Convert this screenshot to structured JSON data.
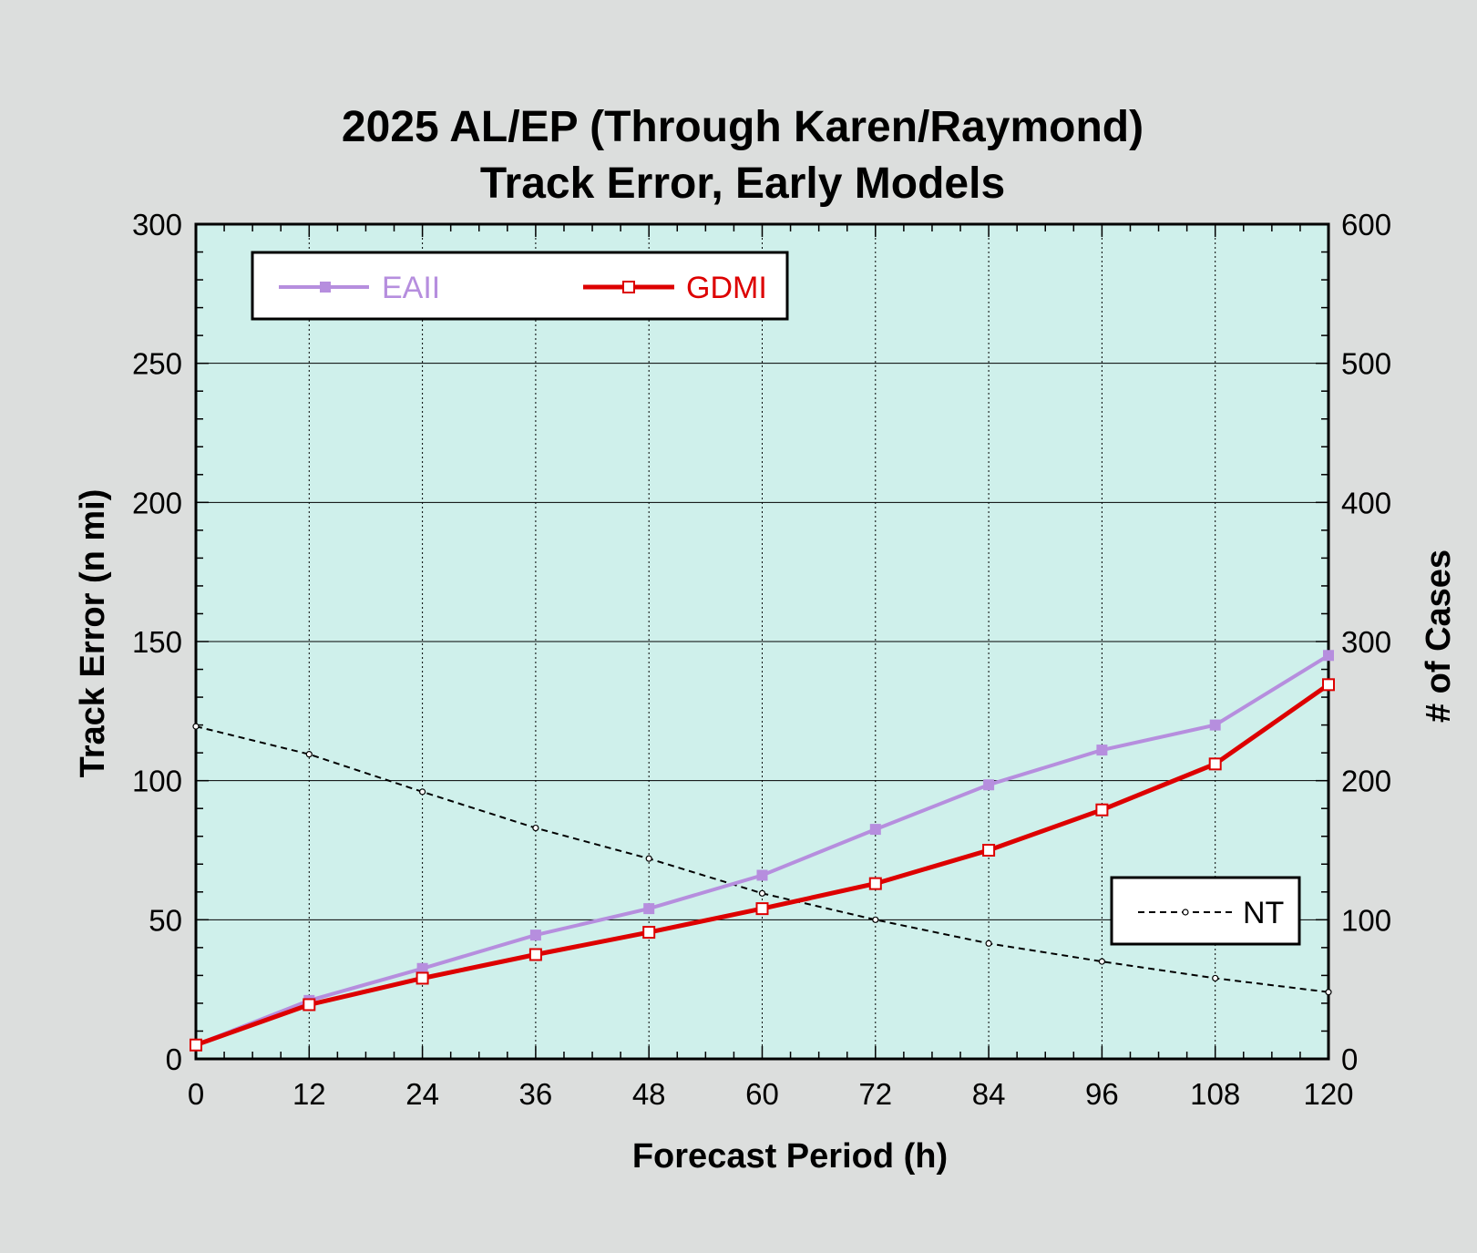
{
  "chart_data": {
    "type": "line",
    "title": "2025 AL/EP (Through Karen/Raymond)",
    "subtitle": "Track Error, Early Models",
    "xlabel": "Forecast Period (h)",
    "ylabel": "Track Error (n mi)",
    "y2label": "# of Cases",
    "x": [
      0,
      12,
      24,
      36,
      48,
      60,
      72,
      84,
      96,
      108,
      120
    ],
    "xlim": [
      0,
      120
    ],
    "ylim": [
      0,
      300
    ],
    "y2lim": [
      0,
      600
    ],
    "x_ticks": [
      "0",
      "12",
      "24",
      "36",
      "48",
      "60",
      "72",
      "84",
      "96",
      "108",
      "120"
    ],
    "y_ticks": [
      "0",
      "50",
      "100",
      "150",
      "200",
      "250",
      "300"
    ],
    "y2_ticks": [
      "0",
      "100",
      "200",
      "300",
      "400",
      "500",
      "600"
    ],
    "grid": true,
    "series": [
      {
        "name": "EAII",
        "axis": "left",
        "color": "#b68ede",
        "marker": "filled-square",
        "values": [
          5,
          21,
          32.5,
          44.5,
          54,
          66,
          82.5,
          98.5,
          111,
          120,
          145
        ]
      },
      {
        "name": "GDMI",
        "axis": "left",
        "color": "#dd0000",
        "marker": "open-square",
        "values": [
          5,
          19.5,
          29,
          37.5,
          45.5,
          54,
          63,
          75,
          89.5,
          106,
          134.5
        ]
      },
      {
        "name": "NT",
        "axis": "right",
        "color": "#000000",
        "marker": "small-circle",
        "dashed": true,
        "values": [
          239,
          219,
          192,
          166,
          144,
          119,
          100,
          83,
          70,
          58,
          48
        ]
      }
    ],
    "legend_main": {
      "placement": "top-left",
      "entries": [
        "EAII",
        "GDMI"
      ]
    },
    "legend_cases": {
      "placement": "bottom-right",
      "entries": [
        "NT"
      ]
    },
    "colors": {
      "page_background": "#dcdedd",
      "plot_background": "#cff0eb"
    }
  }
}
